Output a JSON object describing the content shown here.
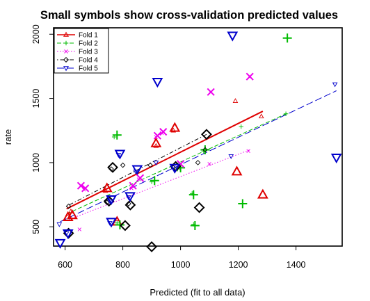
{
  "chart_data": {
    "type": "scatter",
    "title": "Small symbols show cross-validation predicted values",
    "xlabel": "Predicted (fit to all data)",
    "ylabel": "rate",
    "xlim": [
      560,
      1560
    ],
    "ylim": [
      350,
      2050
    ],
    "xticks": [
      600,
      800,
      1000,
      1200,
      1400
    ],
    "yticks": [
      500,
      1000,
      1500,
      2000
    ],
    "grid": false,
    "legend_position": "top-left",
    "series": [
      {
        "name": "Fold 1",
        "color": "#DF0000",
        "symbol": "triangle-up",
        "line": "solid",
        "large": [
          [
            610,
            575
          ],
          [
            625,
            590
          ],
          [
            745,
            800
          ],
          [
            780,
            540
          ],
          [
            915,
            1150
          ],
          [
            980,
            1270
          ],
          [
            1195,
            930
          ],
          [
            1285,
            750
          ]
        ],
        "small": [
          [
            610,
            600
          ],
          [
            620,
            620
          ],
          [
            740,
            780
          ],
          [
            780,
            560
          ],
          [
            915,
            1130
          ],
          [
            975,
            1250
          ],
          [
            1190,
            1480
          ],
          [
            1280,
            1360
          ]
        ],
        "fit": [
          [
            605,
            640
          ],
          [
            1285,
            1400
          ]
        ]
      },
      {
        "name": "Fold 2",
        "color": "#00BB00",
        "symbol": "plus",
        "line": "dashed",
        "large": [
          [
            780,
            1215
          ],
          [
            790,
            515
          ],
          [
            910,
            860
          ],
          [
            1000,
            960
          ],
          [
            1045,
            750
          ],
          [
            1050,
            510
          ],
          [
            1085,
            1100
          ],
          [
            1215,
            680
          ],
          [
            1370,
            1970
          ]
        ],
        "small": [
          [
            770,
            1200
          ],
          [
            780,
            530
          ],
          [
            900,
            850
          ],
          [
            990,
            950
          ],
          [
            1040,
            760
          ],
          [
            1045,
            520
          ],
          [
            1080,
            1090
          ],
          [
            1210,
            1280
          ],
          [
            1365,
            1380
          ]
        ],
        "fit": [
          [
            605,
            600
          ],
          [
            1370,
            1385
          ]
        ]
      },
      {
        "name": "Fold 3",
        "color": "#EE00EE",
        "symbol": "x",
        "line": "dotted",
        "large": [
          [
            655,
            820
          ],
          [
            670,
            800
          ],
          [
            835,
            820
          ],
          [
            860,
            880
          ],
          [
            920,
            1210
          ],
          [
            940,
            1240
          ],
          [
            1000,
            990
          ],
          [
            1105,
            1550
          ],
          [
            1240,
            1670
          ]
        ],
        "small": [
          [
            650,
            480
          ],
          [
            665,
            790
          ],
          [
            830,
            800
          ],
          [
            855,
            870
          ],
          [
            915,
            1200
          ],
          [
            935,
            1230
          ],
          [
            995,
            980
          ],
          [
            1100,
            990
          ],
          [
            1235,
            1090
          ]
        ],
        "fit": [
          [
            605,
            550
          ],
          [
            1240,
            1100
          ]
        ]
      },
      {
        "name": "Fold 4",
        "color": "#000000",
        "symbol": "diamond",
        "line": "dotdash",
        "large": [
          [
            612,
            450
          ],
          [
            752,
            700
          ],
          [
            765,
            963
          ],
          [
            808,
            510
          ],
          [
            826,
            670
          ],
          [
            900,
            345
          ],
          [
            983,
            970
          ],
          [
            1065,
            650
          ],
          [
            1090,
            1220
          ]
        ],
        "small": [
          [
            612,
            660
          ],
          [
            745,
            690
          ],
          [
            760,
            950
          ],
          [
            800,
            980
          ],
          [
            820,
            680
          ],
          [
            895,
            980
          ],
          [
            975,
            960
          ],
          [
            1060,
            1000
          ],
          [
            1085,
            1100
          ]
        ],
        "fit": [
          [
            605,
            660
          ],
          [
            1090,
            1220
          ]
        ]
      },
      {
        "name": "Fold 5",
        "color": "#0000CC",
        "symbol": "triangle-down",
        "line": "longdash",
        "large": [
          [
            583,
            375
          ],
          [
            610,
            450
          ],
          [
            760,
            540
          ],
          [
            760,
            715
          ],
          [
            790,
            1070
          ],
          [
            825,
            740
          ],
          [
            850,
            950
          ],
          [
            920,
            1630
          ],
          [
            980,
            960
          ],
          [
            1180,
            1990
          ],
          [
            1540,
            1040
          ]
        ],
        "small": [
          [
            580,
            520
          ],
          [
            605,
            450
          ],
          [
            755,
            530
          ],
          [
            755,
            700
          ],
          [
            785,
            1060
          ],
          [
            820,
            730
          ],
          [
            845,
            930
          ],
          [
            915,
            1000
          ],
          [
            975,
            970
          ],
          [
            1175,
            1050
          ],
          [
            1535,
            1610
          ]
        ],
        "fit": [
          [
            583,
            540
          ],
          [
            1540,
            1560
          ]
        ]
      }
    ]
  }
}
